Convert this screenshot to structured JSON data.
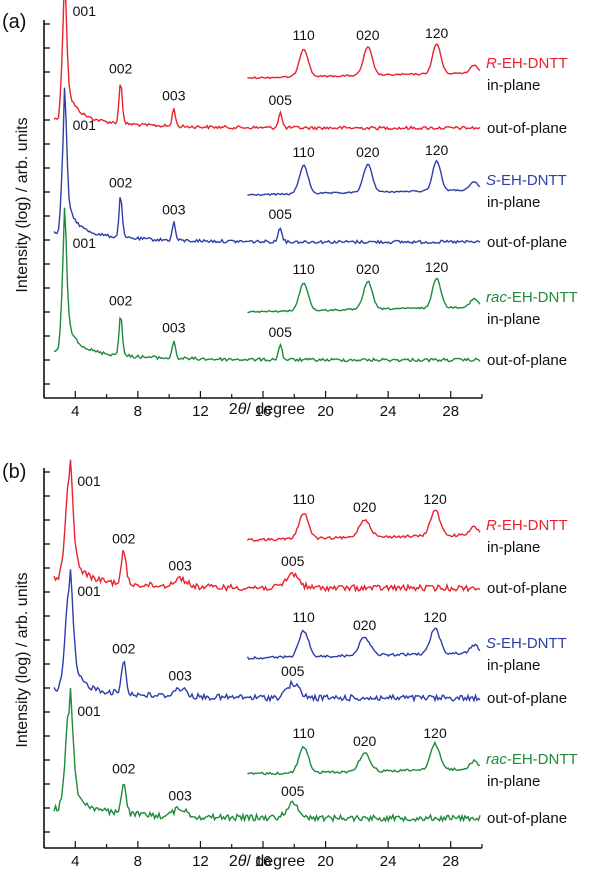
{
  "chart_data": [
    {
      "panel_label": "(a)",
      "type": "line",
      "xlabel_italic": "θ",
      "xlabel_prefix": "2",
      "xlabel_suffix": "/ degree",
      "ylabel": "Intensity (log) / arb. units",
      "xlim": [
        2,
        30
      ],
      "xticks": [
        4,
        8,
        12,
        16,
        20,
        24,
        28
      ],
      "y_scale": "log",
      "grid": false,
      "groups": [
        {
          "sample_prefix": "R",
          "sample_suffix": "-EH-DNTT",
          "color": "#e8232d",
          "out_of_plane": {
            "label": "out-of-plane",
            "peaks": [
              {
                "label": "001",
                "x": 3.3
              },
              {
                "label": "002",
                "x": 6.9
              },
              {
                "label": "003",
                "x": 10.3
              },
              {
                "label": "005",
                "x": 17.1
              }
            ]
          },
          "in_plane": {
            "label": "in-plane",
            "peaks": [
              {
                "label": "110",
                "x": 18.6
              },
              {
                "label": "020",
                "x": 22.7
              },
              {
                "label": "120",
                "x": 27.1
              }
            ]
          }
        },
        {
          "sample_prefix": "S",
          "sample_suffix": "-EH-DNTT",
          "color": "#2e3ea8",
          "out_of_plane": {
            "label": "out-of-plane",
            "peaks": [
              {
                "label": "001",
                "x": 3.3
              },
              {
                "label": "002",
                "x": 6.9
              },
              {
                "label": "003",
                "x": 10.3
              },
              {
                "label": "005",
                "x": 17.1
              }
            ]
          },
          "in_plane": {
            "label": "in-plane",
            "peaks": [
              {
                "label": "110",
                "x": 18.6
              },
              {
                "label": "020",
                "x": 22.7
              },
              {
                "label": "120",
                "x": 27.1
              }
            ]
          }
        },
        {
          "sample_prefix": "rac",
          "sample_suffix": "-EH-DNTT",
          "color": "#1e8a3c",
          "out_of_plane": {
            "label": "out-of-plane",
            "peaks": [
              {
                "label": "001",
                "x": 3.3
              },
              {
                "label": "002",
                "x": 6.9
              },
              {
                "label": "003",
                "x": 10.3
              },
              {
                "label": "005",
                "x": 17.1
              }
            ]
          },
          "in_plane": {
            "label": "in-plane",
            "peaks": [
              {
                "label": "110",
                "x": 18.6
              },
              {
                "label": "020",
                "x": 22.7
              },
              {
                "label": "120",
                "x": 27.1
              }
            ]
          }
        }
      ]
    },
    {
      "panel_label": "(b)",
      "type": "line",
      "xlabel_italic": "θ",
      "xlabel_prefix": "2",
      "xlabel_suffix": "/ degree",
      "ylabel": "Intensity (log) / arb. units",
      "xlim": [
        2,
        30
      ],
      "xticks": [
        4,
        8,
        12,
        16,
        20,
        24,
        28
      ],
      "y_scale": "log",
      "grid": false,
      "groups": [
        {
          "sample_prefix": "R",
          "sample_suffix": "-EH-DNTT",
          "color": "#e8232d",
          "out_of_plane": {
            "label": "out-of-plane",
            "peaks": [
              {
                "label": "001",
                "x": 3.6
              },
              {
                "label": "002",
                "x": 7.1
              },
              {
                "label": "003",
                "x": 10.7
              },
              {
                "label": "005",
                "x": 17.9
              }
            ]
          },
          "in_plane": {
            "label": "in-plane",
            "peaks": [
              {
                "label": "110",
                "x": 18.6
              },
              {
                "label": "020",
                "x": 22.5
              },
              {
                "label": "120",
                "x": 27.0
              }
            ]
          }
        },
        {
          "sample_prefix": "S",
          "sample_suffix": "-EH-DNTT",
          "color": "#2e3ea8",
          "out_of_plane": {
            "label": "out-of-plane",
            "peaks": [
              {
                "label": "001",
                "x": 3.6
              },
              {
                "label": "002",
                "x": 7.1
              },
              {
                "label": "003",
                "x": 10.7
              },
              {
                "label": "005",
                "x": 17.9
              }
            ]
          },
          "in_plane": {
            "label": "in-plane",
            "peaks": [
              {
                "label": "110",
                "x": 18.6
              },
              {
                "label": "020",
                "x": 22.5
              },
              {
                "label": "120",
                "x": 27.0
              }
            ]
          }
        },
        {
          "sample_prefix": "rac",
          "sample_suffix": "-EH-DNTT",
          "color": "#1e8a3c",
          "out_of_plane": {
            "label": "out-of-plane",
            "peaks": [
              {
                "label": "001",
                "x": 3.6
              },
              {
                "label": "002",
                "x": 7.1
              },
              {
                "label": "003",
                "x": 10.7
              },
              {
                "label": "005",
                "x": 17.9
              }
            ]
          },
          "in_plane": {
            "label": "in-plane",
            "peaks": [
              {
                "label": "110",
                "x": 18.6
              },
              {
                "label": "020",
                "x": 22.5
              },
              {
                "label": "120",
                "x": 27.0
              }
            ]
          }
        }
      ]
    }
  ]
}
